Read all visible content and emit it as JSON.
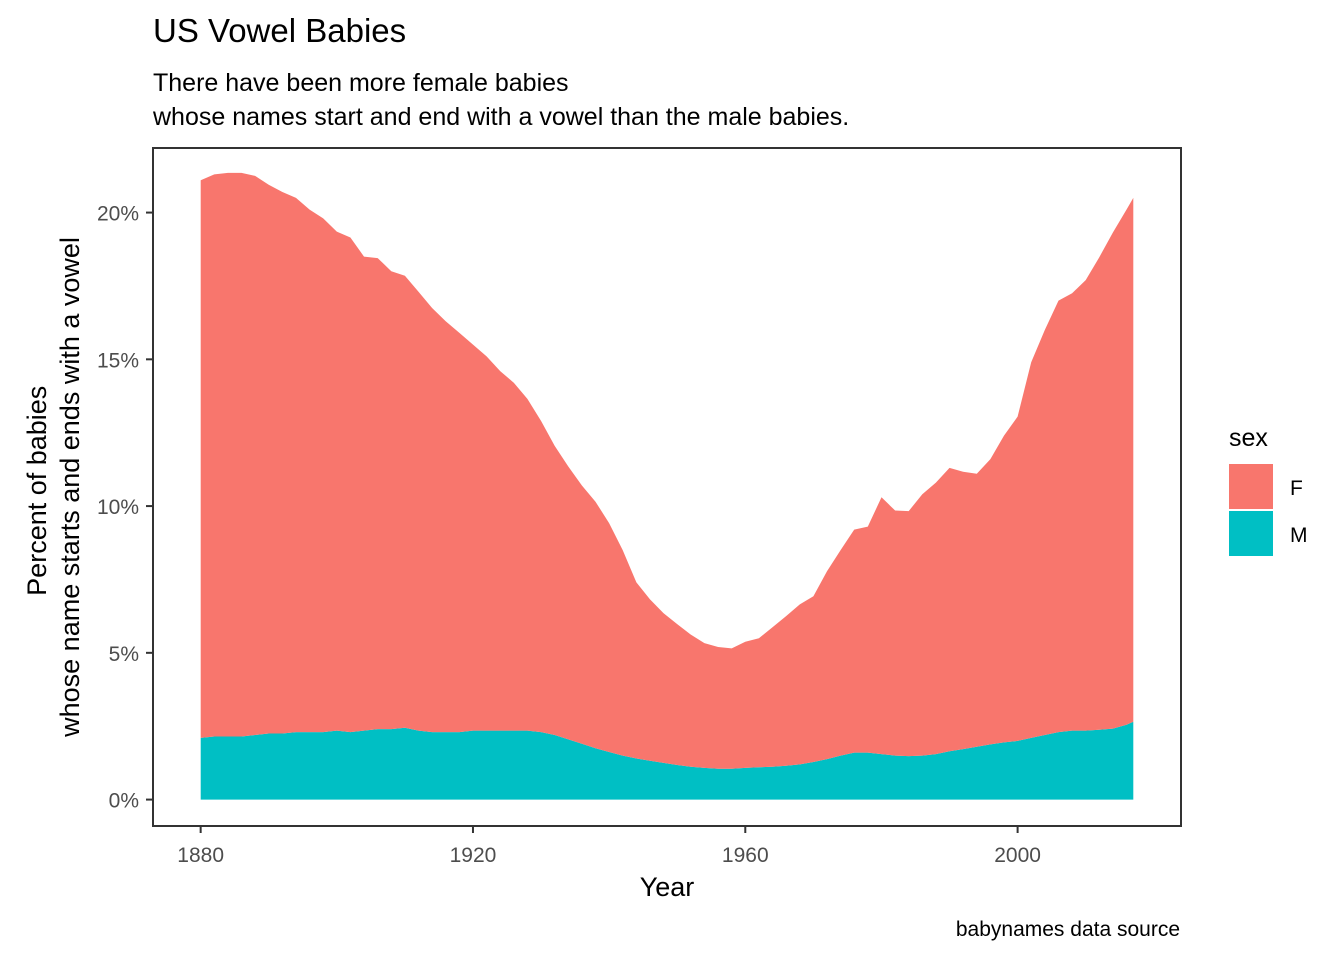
{
  "title": "US Vowel Babies",
  "subtitle_lines": [
    "There have been more female babies",
    "whose names start and end with a vowel than the male babies."
  ],
  "caption": "babynames data source",
  "colors": {
    "F": "#F8766D",
    "M": "#00BFC4",
    "panel_border": "#333333",
    "tick_text": "#4D4D4D"
  },
  "chart_data": {
    "type": "area",
    "stacked": true,
    "title": "US Vowel Babies",
    "xlabel": "Year",
    "ylabel_lines": [
      "Percent of babies",
      "whose name starts and ends with a vowel"
    ],
    "xlim": [
      1873,
      2024
    ],
    "ylim": [
      -0.9,
      22.2
    ],
    "x_ticks": [
      1880,
      1920,
      1960,
      2000
    ],
    "y_ticks": [
      0,
      5,
      10,
      15,
      20
    ],
    "y_tick_labels": [
      "0%",
      "5%",
      "10%",
      "15%",
      "20%"
    ],
    "grid": false,
    "legend": {
      "title": "sex",
      "position": "right",
      "entries": [
        "F",
        "M"
      ]
    },
    "x": [
      1880,
      1882,
      1884,
      1886,
      1888,
      1890,
      1892,
      1894,
      1896,
      1898,
      1900,
      1902,
      1904,
      1906,
      1908,
      1910,
      1912,
      1914,
      1916,
      1918,
      1920,
      1922,
      1924,
      1926,
      1928,
      1930,
      1932,
      1934,
      1936,
      1938,
      1940,
      1942,
      1944,
      1946,
      1948,
      1950,
      1952,
      1954,
      1956,
      1958,
      1960,
      1962,
      1964,
      1966,
      1968,
      1970,
      1972,
      1974,
      1976,
      1978,
      1980,
      1982,
      1984,
      1986,
      1988,
      1990,
      1992,
      1994,
      1996,
      1998,
      2000,
      2002,
      2004,
      2006,
      2008,
      2010,
      2012,
      2014,
      2016,
      2017
    ],
    "series": [
      {
        "name": "M",
        "values": [
          2.1,
          2.15,
          2.15,
          2.15,
          2.2,
          2.25,
          2.25,
          2.3,
          2.3,
          2.3,
          2.35,
          2.3,
          2.35,
          2.4,
          2.4,
          2.45,
          2.35,
          2.3,
          2.3,
          2.3,
          2.35,
          2.35,
          2.35,
          2.35,
          2.35,
          2.3,
          2.2,
          2.05,
          1.9,
          1.75,
          1.62,
          1.5,
          1.4,
          1.32,
          1.25,
          1.18,
          1.12,
          1.08,
          1.05,
          1.05,
          1.08,
          1.1,
          1.12,
          1.15,
          1.2,
          1.28,
          1.38,
          1.5,
          1.6,
          1.6,
          1.55,
          1.5,
          1.48,
          1.5,
          1.55,
          1.65,
          1.72,
          1.8,
          1.88,
          1.95,
          2.0,
          2.1,
          2.2,
          2.3,
          2.35,
          2.35,
          2.38,
          2.42,
          2.55,
          2.65
        ]
      },
      {
        "name": "F",
        "values": [
          19.0,
          19.15,
          19.2,
          19.2,
          19.05,
          18.7,
          18.45,
          18.2,
          17.8,
          17.5,
          17.0,
          16.85,
          16.15,
          16.05,
          15.6,
          15.4,
          14.95,
          14.45,
          14.0,
          13.6,
          13.15,
          12.75,
          12.25,
          11.85,
          11.3,
          10.6,
          9.85,
          9.3,
          8.8,
          8.4,
          7.8,
          7.0,
          6.0,
          5.5,
          5.1,
          4.8,
          4.5,
          4.25,
          4.15,
          4.1,
          4.3,
          4.4,
          4.75,
          5.1,
          5.45,
          5.65,
          6.4,
          7.0,
          7.6,
          7.7,
          8.75,
          8.35,
          8.35,
          8.9,
          9.25,
          9.65,
          9.45,
          9.3,
          9.72,
          10.45,
          11.05,
          12.8,
          13.8,
          14.7,
          14.9,
          15.35,
          16.1,
          16.9,
          17.55,
          17.85
        ]
      }
    ]
  }
}
